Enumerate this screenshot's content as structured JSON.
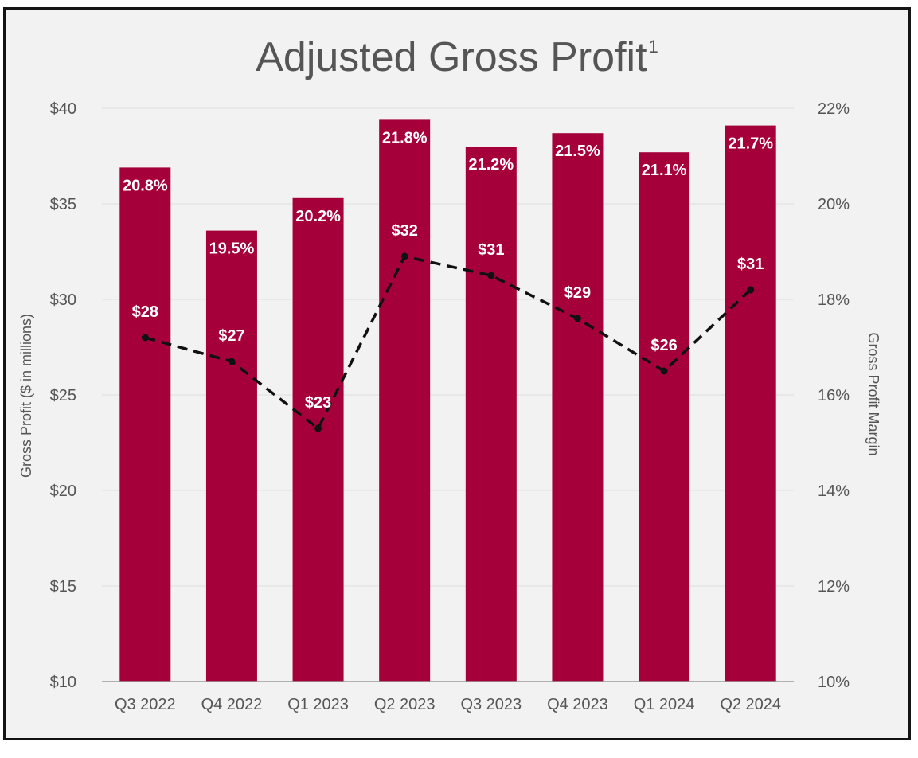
{
  "chart_data": {
    "type": "bar",
    "title": "Adjusted Gross Profit",
    "title_superscript": "1",
    "categories": [
      "Q3 2022",
      "Q4 2022",
      "Q1 2023",
      "Q2 2023",
      "Q3 2023",
      "Q4 2023",
      "Q1 2024",
      "Q2 2024"
    ],
    "series": [
      {
        "type": "bar",
        "axis": "left",
        "values": [
          36.9,
          33.6,
          35.3,
          39.4,
          38.0,
          38.7,
          37.7,
          39.1
        ],
        "labels": [
          "20.8%",
          "19.5%",
          "20.2%",
          "21.8%",
          "21.2%",
          "21.5%",
          "21.1%",
          "21.7%"
        ],
        "color": "#a50039"
      },
      {
        "type": "line",
        "axis": "right",
        "style": "dashed",
        "values": [
          17.2,
          16.7,
          15.3,
          18.9,
          18.5,
          17.6,
          16.5,
          18.2
        ],
        "labels": [
          "$28",
          "$27",
          "$23",
          "$32",
          "$31",
          "$29",
          "$26",
          "$31"
        ],
        "color": "#111111"
      }
    ],
    "ylabel": "Gross Profit ($ in millions)",
    "y2label": "Gross Profit Margin",
    "ylim": [
      10,
      40
    ],
    "y2lim": [
      10,
      22
    ],
    "yticks": [
      "$10",
      "$15",
      "$20",
      "$25",
      "$30",
      "$35",
      "$40"
    ],
    "y2ticks": [
      "10%",
      "12%",
      "14%",
      "16%",
      "18%",
      "20%",
      "22%"
    ],
    "grid": true
  }
}
